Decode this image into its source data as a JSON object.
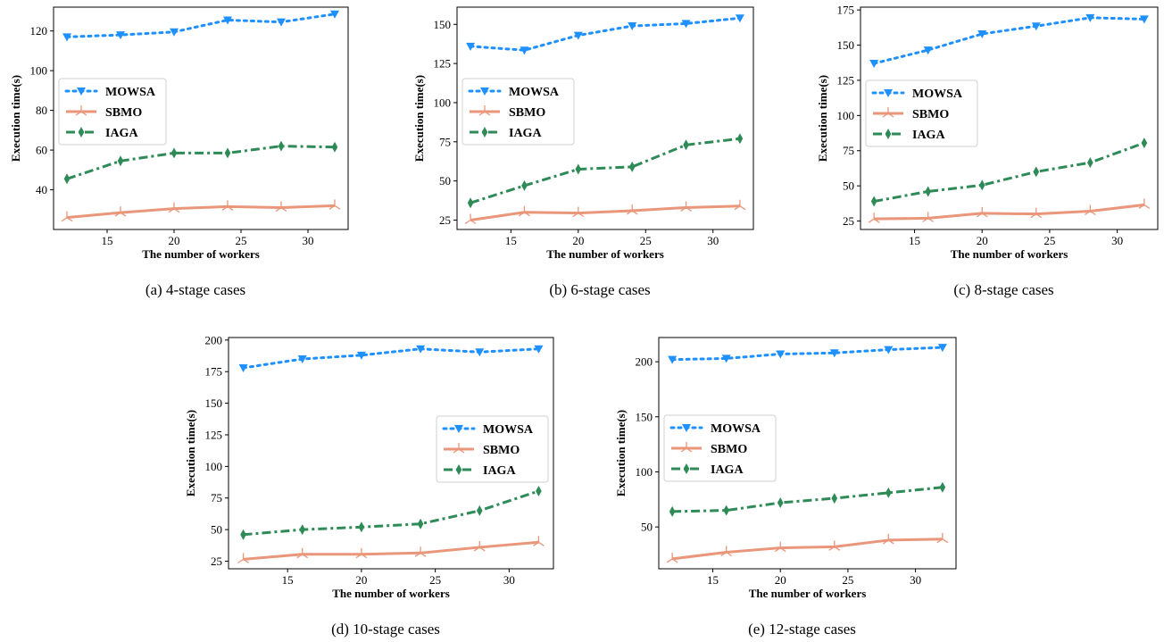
{
  "chart_data": [
    {
      "type": "line",
      "caption": "(a) 4-stage cases",
      "xlabel": "The number of workers",
      "ylabel": "Execution time(s)",
      "x": [
        12,
        16,
        20,
        24,
        28,
        32
      ],
      "xticks": [
        15,
        20,
        25,
        30
      ],
      "yticks": [
        40,
        60,
        80,
        100,
        120
      ],
      "xlim": [
        11,
        33
      ],
      "ylim": [
        20,
        132
      ],
      "legend": "center-left",
      "series": [
        {
          "name": "MOWSA",
          "values": [
            117,
            118,
            119.5,
            125.5,
            124.5,
            128.5
          ]
        },
        {
          "name": "SBMO",
          "values": [
            26,
            28.5,
            30.5,
            31.5,
            31,
            32
          ]
        },
        {
          "name": "IAGA",
          "values": [
            45.5,
            54.5,
            58.5,
            58.5,
            62,
            61.5
          ]
        }
      ]
    },
    {
      "type": "line",
      "caption": "(b) 6-stage cases",
      "xlabel": "The number of workers",
      "ylabel": "Execution time(s)",
      "x": [
        12,
        16,
        20,
        24,
        28,
        32
      ],
      "xticks": [
        15,
        20,
        25,
        30
      ],
      "yticks": [
        25,
        50,
        75,
        100,
        125,
        150
      ],
      "xlim": [
        11,
        33
      ],
      "ylim": [
        19,
        161
      ],
      "legend": "center-left",
      "series": [
        {
          "name": "MOWSA",
          "values": [
            136,
            133.5,
            143,
            149,
            150.5,
            154
          ]
        },
        {
          "name": "SBMO",
          "values": [
            25,
            30,
            29.5,
            31,
            33,
            34
          ]
        },
        {
          "name": "IAGA",
          "values": [
            36,
            47,
            57.5,
            59,
            73,
            77
          ]
        }
      ]
    },
    {
      "type": "line",
      "caption": "(c) 8-stage cases",
      "xlabel": "The number of workers",
      "ylabel": "Execution time(s)",
      "x": [
        12,
        16,
        20,
        24,
        28,
        32
      ],
      "xticks": [
        15,
        20,
        25,
        30
      ],
      "yticks": [
        25,
        50,
        75,
        100,
        125,
        150,
        175
      ],
      "xlim": [
        11,
        33
      ],
      "ylim": [
        19,
        177
      ],
      "legend": "center-left",
      "series": [
        {
          "name": "MOWSA",
          "values": [
            137,
            146.5,
            158,
            163.5,
            169.5,
            168.5
          ]
        },
        {
          "name": "SBMO",
          "values": [
            26.5,
            27,
            30.5,
            30,
            32,
            36.5
          ]
        },
        {
          "name": "IAGA",
          "values": [
            39,
            46,
            50.5,
            60,
            66.5,
            80.5
          ]
        }
      ]
    },
    {
      "type": "line",
      "caption": "(d) 10-stage cases",
      "xlabel": "The number of workers",
      "ylabel": "Execution time(s)",
      "x": [
        12,
        16,
        20,
        24,
        28,
        32
      ],
      "xticks": [
        15,
        20,
        25,
        30
      ],
      "yticks": [
        25,
        50,
        75,
        100,
        125,
        150,
        175,
        200
      ],
      "xlim": [
        11,
        33
      ],
      "ylim": [
        19,
        202
      ],
      "legend": "center-right",
      "series": [
        {
          "name": "MOWSA",
          "values": [
            178,
            185,
            188,
            193,
            190.5,
            193
          ]
        },
        {
          "name": "SBMO",
          "values": [
            26.5,
            30.5,
            30.5,
            31.5,
            36,
            40
          ]
        },
        {
          "name": "IAGA",
          "values": [
            46,
            50,
            52,
            54.5,
            65,
            80.5
          ]
        }
      ]
    },
    {
      "type": "line",
      "caption": "(e) 12-stage cases",
      "xlabel": "The number of workers",
      "ylabel": "Execution time(s)",
      "x": [
        12,
        16,
        20,
        24,
        28,
        32
      ],
      "xticks": [
        15,
        20,
        25,
        30
      ],
      "yticks": [
        50,
        100,
        150,
        200
      ],
      "xlim": [
        11,
        33
      ],
      "ylim": [
        12,
        222
      ],
      "legend": "center-left",
      "series": [
        {
          "name": "MOWSA",
          "values": [
            202,
            203,
            207,
            208,
            211,
            213
          ]
        },
        {
          "name": "SBMO",
          "values": [
            21,
            27,
            31,
            32,
            38,
            39
          ]
        },
        {
          "name": "IAGA",
          "values": [
            64,
            65,
            72,
            76,
            81,
            86
          ]
        }
      ]
    }
  ],
  "style": {
    "colors": {
      "MOWSA": "#1e90ff",
      "SBMO": "#e9967a",
      "IAGA": "#2e8b57"
    },
    "markers": {
      "MOWSA": "triangle-down",
      "SBMO": "tri-star",
      "IAGA": "thin-diamond"
    },
    "linestyles": {
      "MOWSA": "dotted",
      "SBMO": "solid",
      "IAGA": "dash-dot"
    }
  }
}
